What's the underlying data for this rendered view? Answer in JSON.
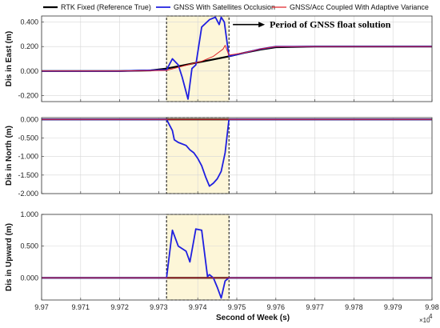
{
  "chart_data": {
    "type": "line",
    "xlabel": "Second of Week (s)",
    "x_exponent_label": "×10",
    "x_exponent_power": "4",
    "xlim": [
      9.97,
      9.98
    ],
    "x_ticks": [
      9.97,
      9.971,
      9.972,
      9.973,
      9.974,
      9.975,
      9.976,
      9.977,
      9.978,
      9.979,
      9.98
    ],
    "x_tick_labels": [
      "9.97",
      "9.971",
      "9.972",
      "9.973",
      "9.974",
      "9.975",
      "9.976",
      "9.977",
      "9.978",
      "9.979",
      "9.98"
    ],
    "grid": true,
    "legend": {
      "placement": "top",
      "entries": [
        {
          "label": "RTK Fixed (Reference True)",
          "color": "#000000"
        },
        {
          "label": "GNSS With Satellites Occlusion",
          "color": "#1f1fe0"
        },
        {
          "label": "GNSS/Acc Coupled With Adaptive Variance",
          "color": "#e0262a"
        }
      ]
    },
    "highlight": {
      "x_range": [
        9.9732,
        9.9748
      ],
      "fill": "#fdf6d8",
      "annotation": "Period of GNSS float solution",
      "annotation_x": 9.9749,
      "annotation_y": 0.38
    },
    "panels": [
      {
        "ylabel": "Dis in East (m)",
        "ylim": [
          -0.25,
          0.45
        ],
        "y_ticks": [
          -0.2,
          0.0,
          0.2,
          0.4
        ],
        "y_tick_labels": [
          "-0.200",
          "0.000",
          "0.200",
          "0.400"
        ],
        "series": [
          {
            "name": "RTK Fixed (Reference True)",
            "color": "#000000",
            "x": [
              9.97,
              9.971,
              9.972,
              9.9728,
              9.9732,
              9.9736,
              9.974,
              9.9744,
              9.9748,
              9.9752,
              9.9756,
              9.976,
              9.977,
              9.978,
              9.979,
              9.98
            ],
            "y": [
              0.0,
              0.0,
              0.0,
              0.005,
              0.02,
              0.045,
              0.07,
              0.095,
              0.12,
              0.15,
              0.175,
              0.195,
              0.2,
              0.2,
              0.2,
              0.2
            ]
          },
          {
            "name": "GNSS With Satellites Occlusion",
            "color": "#1f1fe0",
            "x": [
              9.97,
              9.972,
              9.9732,
              9.97335,
              9.9735,
              9.9736,
              9.97375,
              9.97385,
              9.97395,
              9.9741,
              9.9743,
              9.97445,
              9.97455,
              9.9746,
              9.97468,
              9.9748,
              9.9752,
              9.9756,
              9.976,
              9.977,
              9.978,
              9.979,
              9.98
            ],
            "y": [
              0.0,
              0.0,
              0.01,
              0.1,
              0.05,
              -0.05,
              -0.23,
              0.02,
              0.05,
              0.36,
              0.42,
              0.44,
              0.38,
              0.44,
              0.4,
              0.12,
              0.15,
              0.18,
              0.2,
              0.2,
              0.2,
              0.2,
              0.2
            ]
          },
          {
            "name": "GNSS/Acc Coupled With Adaptive Variance",
            "color": "#e0262a",
            "x": [
              9.97,
              9.972,
              9.9732,
              9.9735,
              9.9738,
              9.9741,
              9.9744,
              9.97465,
              9.9747,
              9.9748,
              9.9752,
              9.9756,
              9.976,
              9.977,
              9.978,
              9.979,
              9.98
            ],
            "y": [
              0.0,
              0.0,
              0.005,
              0.03,
              0.055,
              0.08,
              0.12,
              0.18,
              0.21,
              0.13,
              0.15,
              0.18,
              0.2,
              0.2,
              0.2,
              0.2,
              0.2
            ]
          }
        ]
      },
      {
        "ylabel": "Dis in North (m)",
        "ylim": [
          -2.0,
          0.05
        ],
        "y_ticks": [
          -2.0,
          -1.5,
          -1.0,
          -0.5,
          0.0
        ],
        "y_tick_labels": [
          "-2.000",
          "-1.500",
          "-1.000",
          "-0.500",
          "0.000"
        ],
        "series": [
          {
            "name": "RTK Fixed (Reference True)",
            "color": "#000000",
            "x": [
              9.97,
              9.98
            ],
            "y": [
              0.0,
              0.0
            ]
          },
          {
            "name": "GNSS With Satellites Occlusion",
            "color": "#1f1fe0",
            "x": [
              9.97,
              9.9732,
              9.97335,
              9.9734,
              9.9735,
              9.9737,
              9.9738,
              9.9739,
              9.974,
              9.9741,
              9.9742,
              9.9743,
              9.9744,
              9.9745,
              9.9746,
              9.9747,
              9.9748,
              9.98
            ],
            "y": [
              0.0,
              0.0,
              -0.3,
              -0.55,
              -0.62,
              -0.7,
              -0.82,
              -0.9,
              -1.05,
              -1.25,
              -1.55,
              -1.8,
              -1.72,
              -1.6,
              -1.4,
              -0.9,
              0.0,
              0.0
            ]
          },
          {
            "name": "GNSS/Acc Coupled With Adaptive Variance",
            "color": "#e0262a",
            "x": [
              9.97,
              9.98
            ],
            "y": [
              0.0,
              0.0
            ]
          }
        ]
      },
      {
        "ylabel": "Dis in Upward (m)",
        "ylim": [
          -0.35,
          1.0
        ],
        "y_ticks": [
          0.0,
          0.5,
          1.0
        ],
        "y_tick_labels": [
          "0.000",
          "0.500",
          "1.000"
        ],
        "series": [
          {
            "name": "RTK Fixed (Reference True)",
            "color": "#000000",
            "x": [
              9.97,
              9.98
            ],
            "y": [
              0.0,
              0.0
            ]
          },
          {
            "name": "GNSS With Satellites Occlusion",
            "color": "#1f1fe0",
            "x": [
              9.97,
              9.9732,
              9.97335,
              9.9735,
              9.9737,
              9.9738,
              9.97395,
              9.9741,
              9.97425,
              9.9743,
              9.9744,
              9.9745,
              9.9746,
              9.9747,
              9.9748,
              9.98
            ],
            "y": [
              0.0,
              0.0,
              0.75,
              0.5,
              0.42,
              0.25,
              0.77,
              0.75,
              0.02,
              0.05,
              0.0,
              -0.15,
              -0.32,
              -0.05,
              0.0,
              0.0
            ]
          },
          {
            "name": "GNSS/Acc Coupled With Adaptive Variance",
            "color": "#e0262a",
            "x": [
              9.97,
              9.98
            ],
            "y": [
              0.0,
              0.0
            ]
          }
        ]
      }
    ]
  }
}
